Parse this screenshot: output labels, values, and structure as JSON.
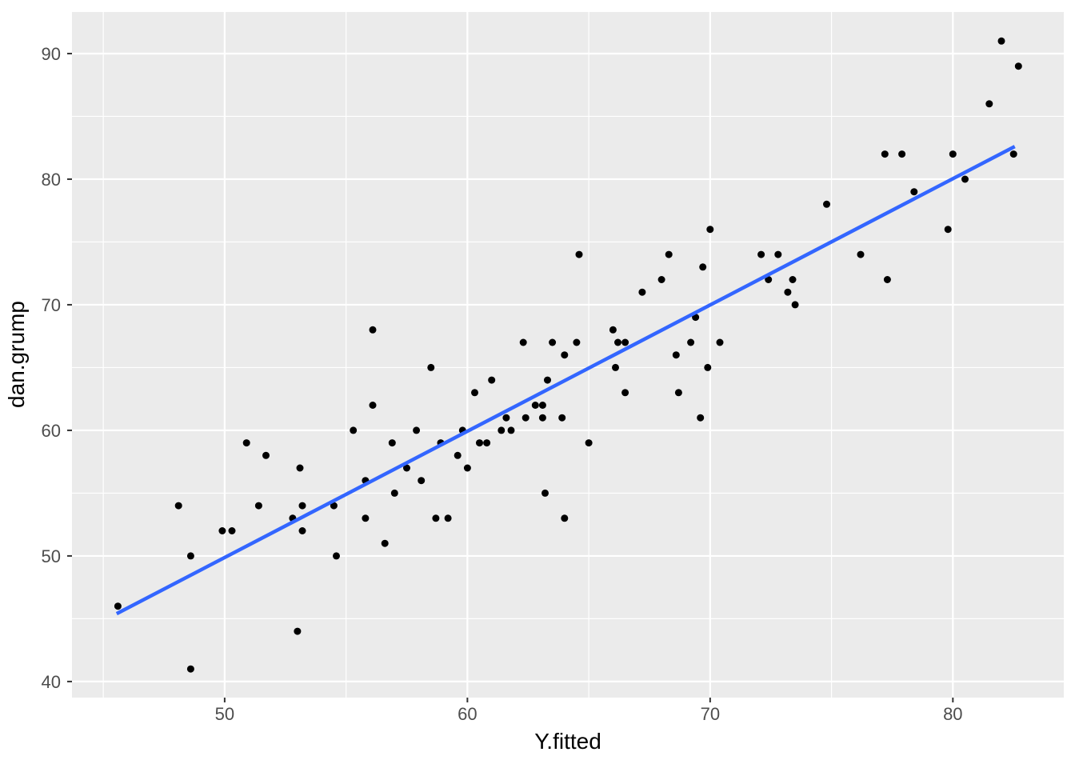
{
  "chart_data": {
    "type": "scatter",
    "title": "",
    "xlabel": "Y.fitted",
    "ylabel": "dan.grump",
    "legend": null,
    "grid": "major-and-minor",
    "panel_bg": "#EBEBEB",
    "colors": {
      "grid": "#FFFFFF",
      "point": "#000000",
      "line": "#3366FF",
      "tick_label": "#4D4D4D",
      "tick_mark": "#333333",
      "axis_title": "#000000",
      "outer_bg": "#FFFFFF"
    },
    "xlim": [
      43.71,
      84.57
    ],
    "ylim": [
      38.72,
      93.31
    ],
    "x_ticks": [
      50,
      60,
      70,
      80
    ],
    "y_ticks": [
      40,
      50,
      60,
      70,
      80,
      90
    ],
    "x_minor_ticks": [
      45,
      55,
      65,
      75,
      85
    ],
    "y_minor_ticks": [
      45,
      55,
      65,
      75,
      85
    ],
    "regression_line": {
      "x1": 45.55,
      "y1": 45.4,
      "x2": 82.55,
      "y2": 82.6
    },
    "points": [
      [
        82.0,
        91
      ],
      [
        82.7,
        89
      ],
      [
        81.5,
        86
      ],
      [
        77.2,
        82
      ],
      [
        77.9,
        82
      ],
      [
        80.0,
        82
      ],
      [
        82.5,
        82
      ],
      [
        80.5,
        80
      ],
      [
        78.4,
        79
      ],
      [
        74.8,
        78
      ],
      [
        79.8,
        76
      ],
      [
        70.0,
        76
      ],
      [
        64.6,
        74
      ],
      [
        68.3,
        74
      ],
      [
        72.1,
        74
      ],
      [
        72.8,
        74
      ],
      [
        76.2,
        74
      ],
      [
        69.7,
        73
      ],
      [
        72.4,
        72
      ],
      [
        73.4,
        72
      ],
      [
        77.3,
        72
      ],
      [
        68.0,
        72
      ],
      [
        67.2,
        71
      ],
      [
        73.2,
        71
      ],
      [
        73.5,
        70
      ],
      [
        69.4,
        69
      ],
      [
        66.0,
        68
      ],
      [
        56.1,
        68
      ],
      [
        62.3,
        67
      ],
      [
        63.5,
        67
      ],
      [
        64.5,
        67
      ],
      [
        66.2,
        67
      ],
      [
        66.5,
        67
      ],
      [
        69.2,
        67
      ],
      [
        70.4,
        67
      ],
      [
        64.0,
        66
      ],
      [
        68.6,
        66
      ],
      [
        66.1,
        65
      ],
      [
        69.9,
        65
      ],
      [
        58.5,
        65
      ],
      [
        61.0,
        64
      ],
      [
        63.3,
        64
      ],
      [
        60.3,
        63
      ],
      [
        66.5,
        63
      ],
      [
        68.7,
        63
      ],
      [
        62.8,
        62
      ],
      [
        63.1,
        62
      ],
      [
        56.1,
        62
      ],
      [
        61.6,
        61
      ],
      [
        62.4,
        61
      ],
      [
        63.1,
        61
      ],
      [
        63.9,
        61
      ],
      [
        69.6,
        61
      ],
      [
        55.3,
        60
      ],
      [
        57.9,
        60
      ],
      [
        59.8,
        60
      ],
      [
        61.4,
        60
      ],
      [
        61.8,
        60
      ],
      [
        50.9,
        59
      ],
      [
        56.9,
        59
      ],
      [
        58.9,
        59
      ],
      [
        60.5,
        59
      ],
      [
        60.8,
        59
      ],
      [
        65.0,
        59
      ],
      [
        51.7,
        58
      ],
      [
        59.6,
        58
      ],
      [
        53.1,
        57
      ],
      [
        57.5,
        57
      ],
      [
        60.0,
        57
      ],
      [
        55.8,
        56
      ],
      [
        58.1,
        56
      ],
      [
        57.0,
        55
      ],
      [
        63.2,
        55
      ],
      [
        48.1,
        54
      ],
      [
        51.4,
        54
      ],
      [
        53.2,
        54
      ],
      [
        54.5,
        54
      ],
      [
        52.8,
        53
      ],
      [
        55.8,
        53
      ],
      [
        58.7,
        53
      ],
      [
        59.2,
        53
      ],
      [
        64.0,
        53
      ],
      [
        49.9,
        52
      ],
      [
        50.3,
        52
      ],
      [
        53.2,
        52
      ],
      [
        56.6,
        51
      ],
      [
        48.6,
        50
      ],
      [
        54.6,
        50
      ],
      [
        45.6,
        46
      ],
      [
        53.0,
        44
      ],
      [
        48.6,
        41
      ]
    ]
  }
}
